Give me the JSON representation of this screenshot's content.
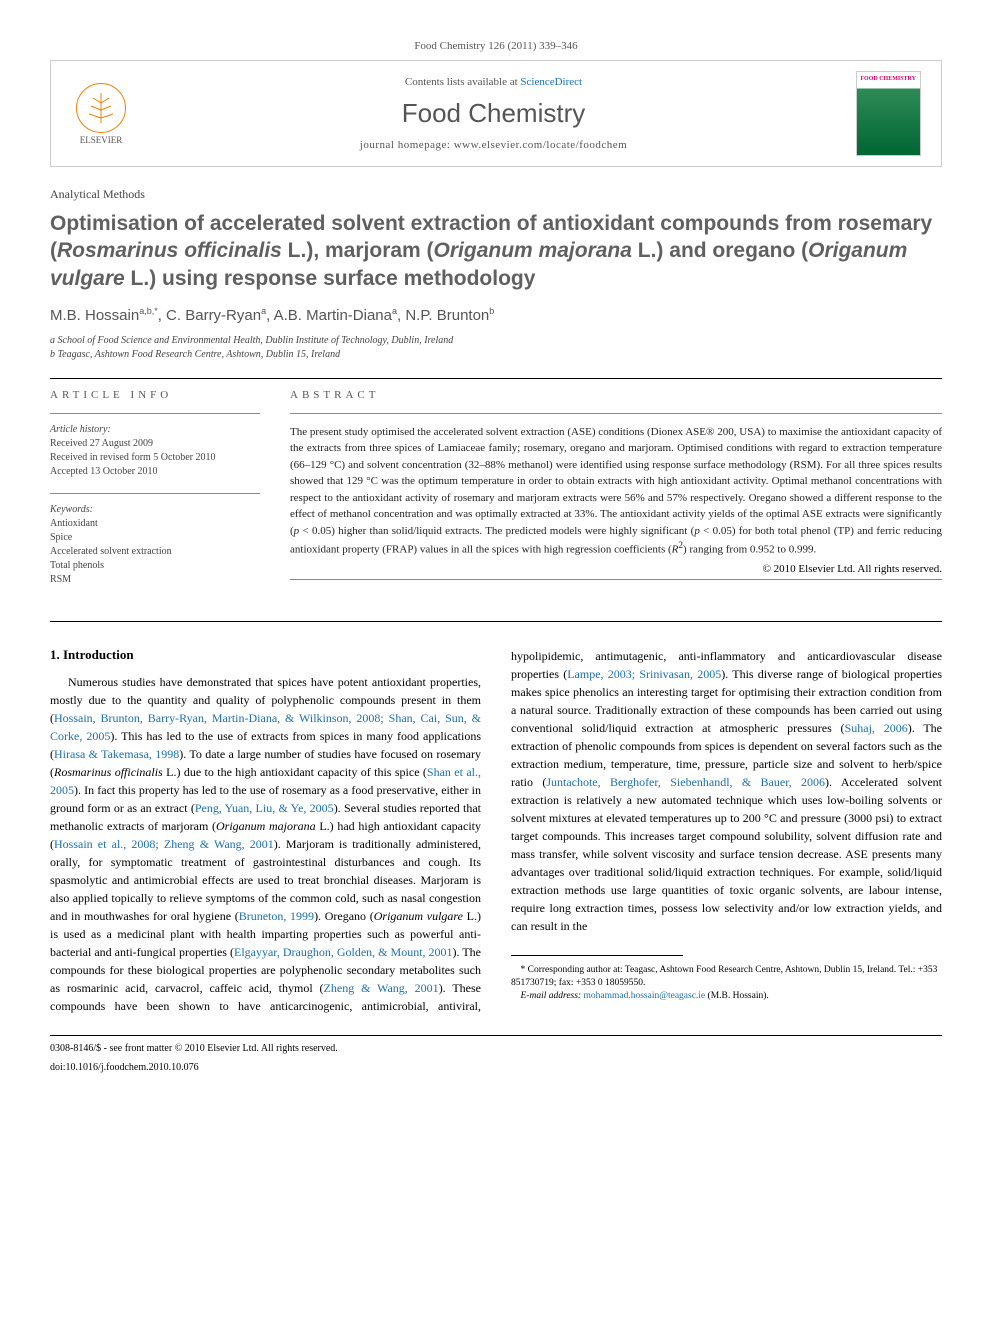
{
  "header": {
    "citation": "Food Chemistry 126 (2011) 339–346",
    "contents_prefix": "Contents lists available at ",
    "contents_link": "ScienceDirect",
    "journal_name": "Food Chemistry",
    "homepage_prefix": "journal homepage: ",
    "homepage_url": "www.elsevier.com/locate/foodchem",
    "publisher_name": "ELSEVIER",
    "cover_label": "FOOD CHEMISTRY"
  },
  "article": {
    "type": "Analytical Methods",
    "title_html": "Optimisation of accelerated solvent extraction of antioxidant compounds from rosemary (<em>Rosmarinus officinalis</em> L.), marjoram (<em>Origanum majorana</em> L.) and oregano (<em>Origanum vulgare</em> L.) using response surface methodology",
    "authors_html": "M.B. Hossain<sup>a,b,*</sup>, C. Barry-Ryan<sup>a</sup>, A.B. Martin-Diana<sup>a</sup>, N.P. Brunton<sup>b</sup>",
    "affiliations": [
      "a School of Food Science and Environmental Health, Dublin Institute of Technology, Dublin, Ireland",
      "b Teagasc, Ashtown Food Research Centre, Ashtown, Dublin 15, Ireland"
    ]
  },
  "info": {
    "heading": "ARTICLE INFO",
    "history_label": "Article history:",
    "history": [
      "Received 27 August 2009",
      "Received in revised form 5 October 2010",
      "Accepted 13 October 2010"
    ],
    "keywords_label": "Keywords:",
    "keywords": [
      "Antioxidant",
      "Spice",
      "Accelerated solvent extraction",
      "Total phenols",
      "RSM"
    ]
  },
  "abstract": {
    "heading": "ABSTRACT",
    "text_html": "The present study optimised the accelerated solvent extraction (ASE) conditions (Dionex ASE® 200, USA) to maximise the antioxidant capacity of the extracts from three spices of Lamiaceae family; rosemary, oregano and marjoram. Optimised conditions with regard to extraction temperature (66–129 °C) and solvent concentration (32–88% methanol) were identified using response surface methodology (RSM). For all three spices results showed that 129 °C was the optimum temperature in order to obtain extracts with high antioxidant activity. Optimal methanol concentrations with respect to the antioxidant activity of rosemary and marjoram extracts were 56% and 57% respectively. Oregano showed a different response to the effect of methanol concentration and was optimally extracted at 33%. The antioxidant activity yields of the optimal ASE extracts were significantly (<em>p</em> < 0.05) higher than solid/liquid extracts. The predicted models were highly significant (<em>p</em> < 0.05) for both total phenol (TP) and ferric reducing antioxidant property (FRAP) values in all the spices with high regression coefficients (<em>R</em><sup>2</sup>) ranging from 0.952 to 0.999.",
    "copyright": "© 2010 Elsevier Ltd. All rights reserved."
  },
  "body": {
    "section_heading": "1. Introduction",
    "paragraph_html": "Numerous studies have demonstrated that spices have potent antioxidant properties, mostly due to the quantity and quality of polyphenolic compounds present in them (<span class='cite'>Hossain, Brunton, Barry-Ryan, Martin-Diana, & Wilkinson, 2008; Shan, Cai, Sun, & Corke, 2005</span>). This has led to the use of extracts from spices in many food applications (<span class='cite'>Hirasa & Takemasa, 1998</span>). To date a large number of studies have focused on rosemary (<em>Rosmarinus officinalis</em> L.) due to the high antioxidant capacity of this spice (<span class='cite'>Shan et al., 2005</span>). In fact this property has led to the use of rosemary as a food preservative, either in ground form or as an extract (<span class='cite'>Peng, Yuan, Liu, & Ye, 2005</span>). Several studies reported that methanolic extracts of marjoram (<em>Origanum majorana</em> L.) had high antioxidant capacity (<span class='cite'>Hossain et al., 2008; Zheng & Wang, 2001</span>). Marjoram is traditionally administered, orally, for symptomatic treatment of gastrointestinal disturbances and cough. Its spasmolytic and antimicrobial effects are used to treat bronchial diseases. Marjoram is also applied topically to relieve symptoms of the common cold, such as nasal congestion and in mouthwashes for oral hygiene (<span class='cite'>Bruneton, 1999</span>). Oregano (<em>Origanum vulgare</em> L.) is used as a medicinal plant with health imparting properties such as powerful anti-bacterial and anti-fungical properties (<span class='cite'>Elgayyar, Draughon, Golden, & Mount, 2001</span>). The compounds for these biological properties are polyphenolic secondary metabolites such as rosmarinic acid, carvacrol, caffeic acid, thymol (<span class='cite'>Zheng & Wang, 2001</span>). These compounds have been shown to have anticarcinogenic, antimicrobial, antiviral, hypolipidemic, antimutagenic, anti-inflammatory and anticardiovascular disease properties (<span class='cite'>Lampe, 2003; Srinivasan, 2005</span>). This diverse range of biological properties makes spice phenolics an interesting target for optimising their extraction condition from a natural source. Traditionally extraction of these compounds has been carried out using conventional solid/liquid extraction at atmospheric pressures (<span class='cite'>Suhaj, 2006</span>). The extraction of phenolic compounds from spices is dependent on several factors such as the extraction medium, temperature, time, pressure, particle size and solvent to herb/spice ratio (<span class='cite'>Juntachote, Berghofer, Siebenhandl, & Bauer, 2006</span>). Accelerated solvent extraction is relatively a new automated technique which uses low-boiling solvents or solvent mixtures at elevated temperatures up to 200 °C and pressure (3000 psi) to extract target compounds. This increases target compound solubility, solvent diffusion rate and mass transfer, while solvent viscosity and surface tension decrease. ASE presents many advantages over traditional solid/liquid extraction techniques. For example, solid/liquid extraction methods use large quantities of toxic organic solvents, are labour intense, require long extraction times, possess low selectivity and/or low extraction yields, and can result in the"
  },
  "footnote": {
    "corresponding": "* Corresponding author at: Teagasc, Ashtown Food Research Centre, Ashtown, Dublin 15, Ireland. Tel.: +353 851730719; fax: +353 0 18059550.",
    "email_label": "E-mail address:",
    "email": "mohammad.hossain@teagasc.ie",
    "email_author": "(M.B. Hossain)."
  },
  "footer": {
    "issn_line": "0308-8146/$ - see front matter © 2010 Elsevier Ltd. All rights reserved.",
    "doi_line": "doi:10.1016/j.foodchem.2010.10.076"
  },
  "colors": {
    "link": "#1a6fb0",
    "elsevier_orange": "#f08000",
    "text_grey": "#555555",
    "cover_pink": "#d9006c",
    "cover_green": "#006633"
  }
}
